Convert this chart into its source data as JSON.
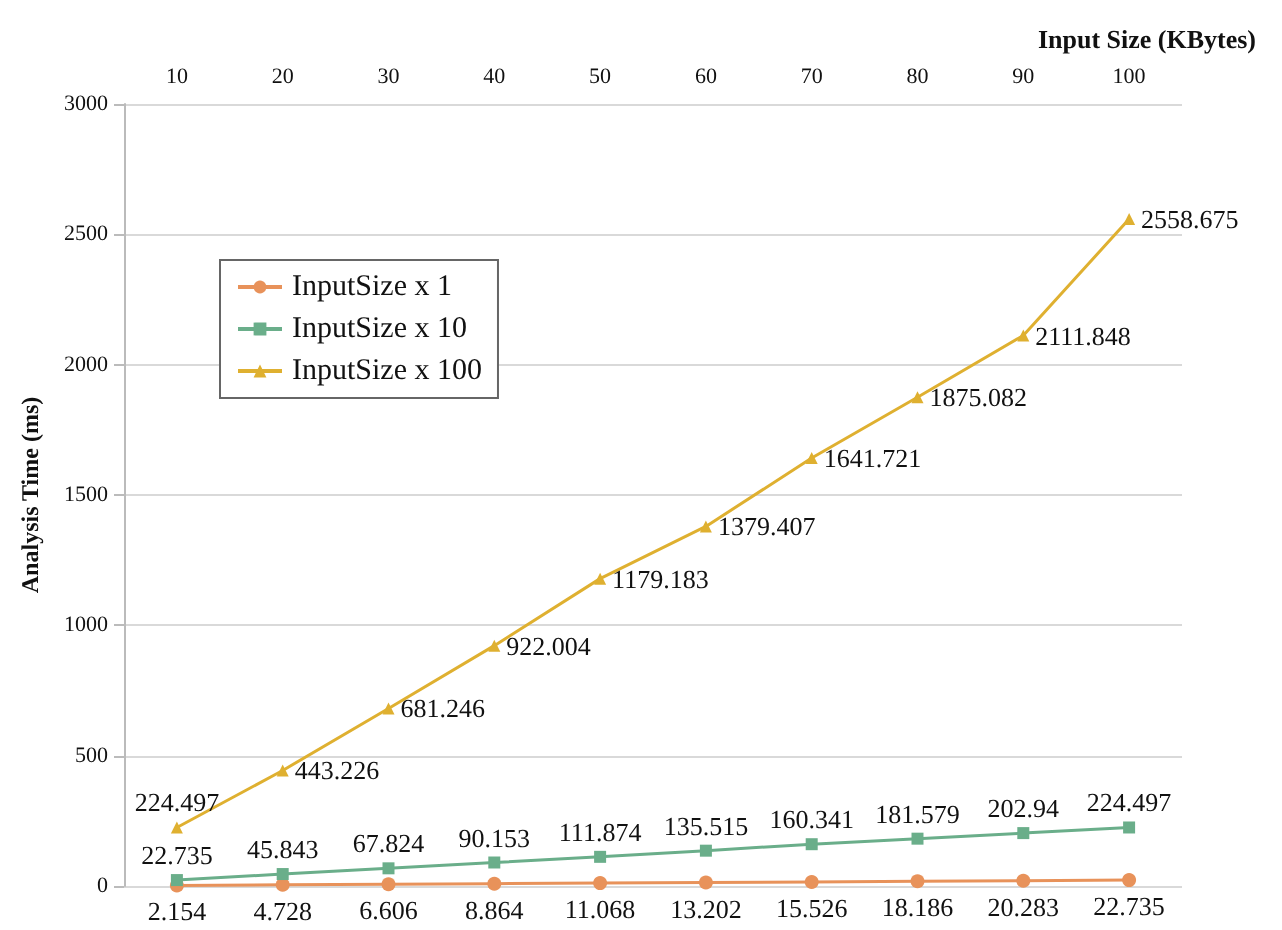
{
  "chart_data": {
    "type": "line",
    "xlabel": "Input Size (KBytes)",
    "ylabel": "Analysis Time (ms)",
    "categories": [
      "10",
      "20",
      "30",
      "40",
      "50",
      "60",
      "70",
      "80",
      "90",
      "100"
    ],
    "series": [
      {
        "name": "InputSize x 1",
        "color": "#e8925a",
        "marker": "circle",
        "values": [
          2.154,
          4.728,
          6.606,
          8.864,
          11.068,
          13.202,
          15.526,
          18.186,
          20.283,
          22.735
        ]
      },
      {
        "name": "InputSize x 10",
        "color": "#6aae8a",
        "marker": "square",
        "values": [
          22.735,
          45.843,
          67.824,
          90.153,
          111.874,
          135.515,
          160.341,
          181.579,
          202.94,
          224.497
        ]
      },
      {
        "name": "InputSize x 100",
        "color": "#dfb030",
        "marker": "triangle",
        "values": [
          224.497,
          443.226,
          681.246,
          922.004,
          1179.183,
          1379.407,
          1641.721,
          1875.082,
          2111.848,
          2558.675
        ]
      }
    ],
    "ylim": [
      0,
      3000
    ],
    "yticks": [
      0,
      500,
      1000,
      1500,
      2000,
      2500,
      3000
    ],
    "grid": "y",
    "legend": "top left",
    "data_labels": true
  }
}
